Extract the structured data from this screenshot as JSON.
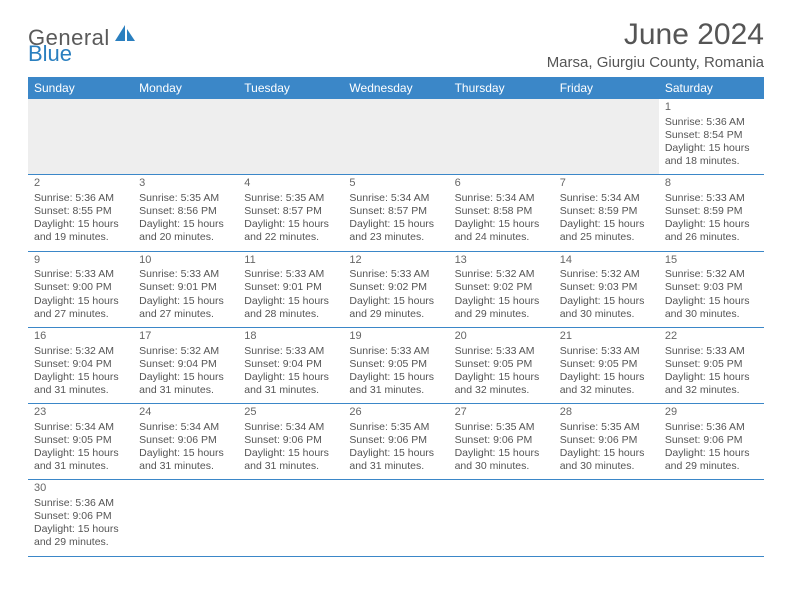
{
  "logo": {
    "text1": "General",
    "text2": "Blue"
  },
  "title": "June 2024",
  "location": "Marsa, Giurgiu County, Romania",
  "colors": {
    "header_bg": "#3b87c8",
    "header_text": "#ffffff",
    "rule": "#3b87c8",
    "blank_bg": "#eeeeee",
    "text": "#555555",
    "logo_gray": "#5a5a5a",
    "logo_blue": "#2a7fbf"
  },
  "weekdays": [
    "Sunday",
    "Monday",
    "Tuesday",
    "Wednesday",
    "Thursday",
    "Friday",
    "Saturday"
  ],
  "days": {
    "1": {
      "sunrise": "5:36 AM",
      "sunset": "8:54 PM",
      "dl_h": 15,
      "dl_m": 18
    },
    "2": {
      "sunrise": "5:36 AM",
      "sunset": "8:55 PM",
      "dl_h": 15,
      "dl_m": 19
    },
    "3": {
      "sunrise": "5:35 AM",
      "sunset": "8:56 PM",
      "dl_h": 15,
      "dl_m": 20
    },
    "4": {
      "sunrise": "5:35 AM",
      "sunset": "8:57 PM",
      "dl_h": 15,
      "dl_m": 22
    },
    "5": {
      "sunrise": "5:34 AM",
      "sunset": "8:57 PM",
      "dl_h": 15,
      "dl_m": 23
    },
    "6": {
      "sunrise": "5:34 AM",
      "sunset": "8:58 PM",
      "dl_h": 15,
      "dl_m": 24
    },
    "7": {
      "sunrise": "5:34 AM",
      "sunset": "8:59 PM",
      "dl_h": 15,
      "dl_m": 25
    },
    "8": {
      "sunrise": "5:33 AM",
      "sunset": "8:59 PM",
      "dl_h": 15,
      "dl_m": 26
    },
    "9": {
      "sunrise": "5:33 AM",
      "sunset": "9:00 PM",
      "dl_h": 15,
      "dl_m": 27
    },
    "10": {
      "sunrise": "5:33 AM",
      "sunset": "9:01 PM",
      "dl_h": 15,
      "dl_m": 27
    },
    "11": {
      "sunrise": "5:33 AM",
      "sunset": "9:01 PM",
      "dl_h": 15,
      "dl_m": 28
    },
    "12": {
      "sunrise": "5:33 AM",
      "sunset": "9:02 PM",
      "dl_h": 15,
      "dl_m": 29
    },
    "13": {
      "sunrise": "5:32 AM",
      "sunset": "9:02 PM",
      "dl_h": 15,
      "dl_m": 29
    },
    "14": {
      "sunrise": "5:32 AM",
      "sunset": "9:03 PM",
      "dl_h": 15,
      "dl_m": 30
    },
    "15": {
      "sunrise": "5:32 AM",
      "sunset": "9:03 PM",
      "dl_h": 15,
      "dl_m": 30
    },
    "16": {
      "sunrise": "5:32 AM",
      "sunset": "9:04 PM",
      "dl_h": 15,
      "dl_m": 31
    },
    "17": {
      "sunrise": "5:32 AM",
      "sunset": "9:04 PM",
      "dl_h": 15,
      "dl_m": 31
    },
    "18": {
      "sunrise": "5:33 AM",
      "sunset": "9:04 PM",
      "dl_h": 15,
      "dl_m": 31
    },
    "19": {
      "sunrise": "5:33 AM",
      "sunset": "9:05 PM",
      "dl_h": 15,
      "dl_m": 31
    },
    "20": {
      "sunrise": "5:33 AM",
      "sunset": "9:05 PM",
      "dl_h": 15,
      "dl_m": 32
    },
    "21": {
      "sunrise": "5:33 AM",
      "sunset": "9:05 PM",
      "dl_h": 15,
      "dl_m": 32
    },
    "22": {
      "sunrise": "5:33 AM",
      "sunset": "9:05 PM",
      "dl_h": 15,
      "dl_m": 32
    },
    "23": {
      "sunrise": "5:34 AM",
      "sunset": "9:05 PM",
      "dl_h": 15,
      "dl_m": 31
    },
    "24": {
      "sunrise": "5:34 AM",
      "sunset": "9:06 PM",
      "dl_h": 15,
      "dl_m": 31
    },
    "25": {
      "sunrise": "5:34 AM",
      "sunset": "9:06 PM",
      "dl_h": 15,
      "dl_m": 31
    },
    "26": {
      "sunrise": "5:35 AM",
      "sunset": "9:06 PM",
      "dl_h": 15,
      "dl_m": 31
    },
    "27": {
      "sunrise": "5:35 AM",
      "sunset": "9:06 PM",
      "dl_h": 15,
      "dl_m": 30
    },
    "28": {
      "sunrise": "5:35 AM",
      "sunset": "9:06 PM",
      "dl_h": 15,
      "dl_m": 30
    },
    "29": {
      "sunrise": "5:36 AM",
      "sunset": "9:06 PM",
      "dl_h": 15,
      "dl_m": 29
    },
    "30": {
      "sunrise": "5:36 AM",
      "sunset": "9:06 PM",
      "dl_h": 15,
      "dl_m": 29
    }
  },
  "labels": {
    "sunrise": "Sunrise:",
    "sunset": "Sunset:",
    "daylight_prefix": "Daylight:",
    "hours_word": "hours",
    "and_word": "and",
    "minutes_word": "minutes."
  },
  "layout": {
    "first_weekday_index": 6,
    "num_days": 30,
    "columns": 7
  }
}
